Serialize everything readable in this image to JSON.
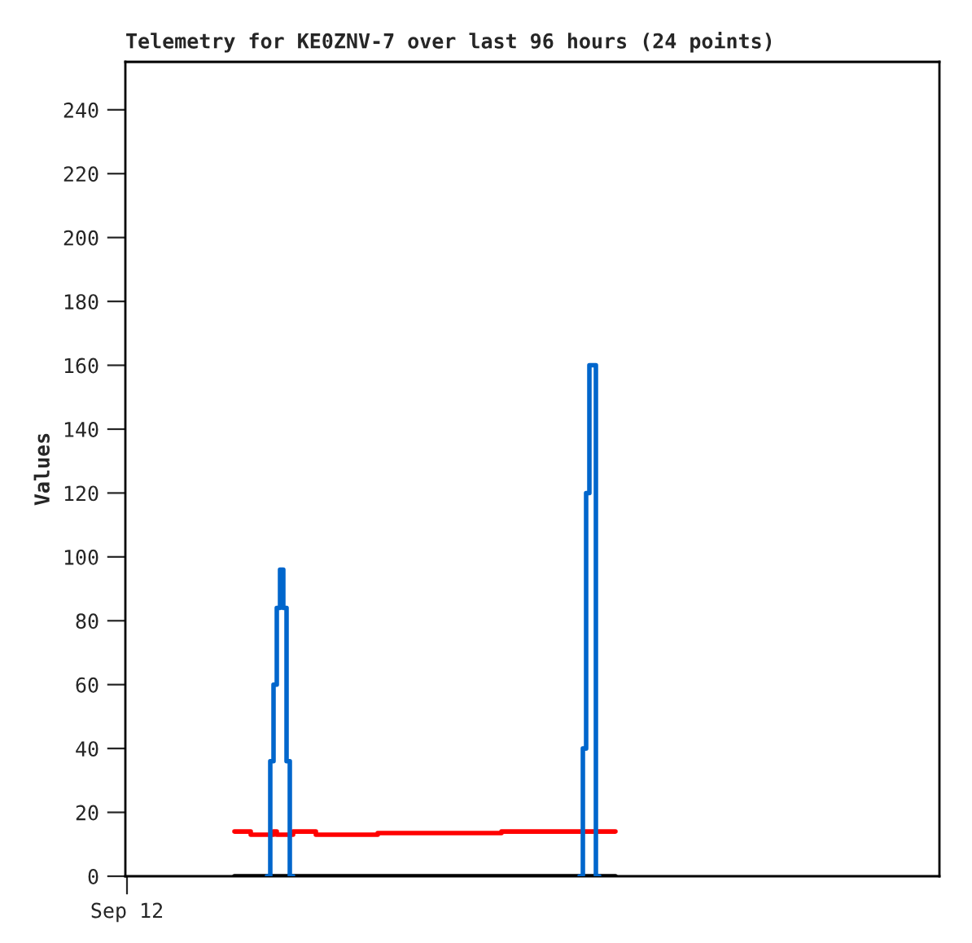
{
  "chart_data": {
    "type": "step",
    "title": "Telemetry for KE0ZNV-7 over last 96 hours (24 points)",
    "ylabel": "Values",
    "categories": [
      "Sep 12",
      null,
      null,
      null,
      null,
      null,
      null,
      null,
      null,
      null,
      null,
      null,
      null,
      null,
      null,
      null,
      null,
      null,
      null,
      null,
      null,
      null,
      null,
      null,
      null,
      null,
      null,
      null,
      null,
      null,
      null,
      null,
      null,
      null,
      null,
      null,
      null,
      null,
      null,
      null,
      null,
      null,
      null,
      null,
      null,
      null,
      null,
      null,
      null,
      null,
      null,
      null,
      null,
      null,
      null,
      null,
      null,
      null,
      null,
      null,
      null,
      null,
      null,
      null,
      null,
      null,
      null,
      null,
      null,
      null,
      null,
      null,
      null,
      null,
      null,
      null,
      null,
      null,
      null,
      null,
      null,
      null,
      null,
      null,
      null,
      null,
      null,
      null,
      null,
      null,
      null,
      null,
      null,
      null,
      null,
      null,
      null,
      null,
      null,
      null,
      null,
      null,
      null,
      null,
      null,
      null,
      null,
      null,
      null,
      null,
      null,
      null,
      null,
      null,
      null,
      null,
      null,
      null,
      null,
      null,
      null,
      null,
      null,
      null,
      null,
      null,
      null,
      null,
      null,
      null,
      null,
      null,
      null,
      null,
      null,
      null,
      null,
      null,
      null,
      null,
      null,
      null,
      null,
      null,
      null,
      null,
      null,
      null,
      null,
      null,
      null,
      null,
      null,
      null,
      null,
      null,
      null,
      null,
      null,
      null,
      null,
      null,
      null,
      null,
      null,
      null,
      null,
      null,
      null,
      null,
      null,
      null,
      null,
      null,
      null,
      null,
      null,
      null,
      null,
      null,
      null,
      null,
      null,
      null,
      null,
      null,
      null,
      null,
      null,
      null,
      null,
      null,
      null,
      null,
      null,
      null,
      null,
      null,
      null,
      null,
      null,
      null,
      null,
      null,
      null,
      null,
      null,
      null,
      null,
      null,
      null,
      null,
      null,
      null,
      null,
      null,
      null,
      null,
      null,
      null,
      null,
      null,
      null,
      null,
      null,
      null,
      null,
      null,
      null,
      null,
      null,
      null,
      null,
      null,
      null,
      null,
      null,
      null,
      null,
      null,
      null,
      null,
      null,
      null,
      null,
      null,
      null,
      null,
      null,
      null
    ],
    "ylim": [
      0,
      255
    ],
    "yticks": [
      0,
      20,
      40,
      60,
      80,
      100,
      120,
      140,
      160,
      180,
      200,
      220,
      240
    ],
    "grid": false,
    "legend": false,
    "marker": "none",
    "line_style": "solid",
    "series": [
      {
        "color": "#0066cc",
        "values": [
          null,
          null,
          null,
          null,
          null,
          null,
          null,
          null,
          null,
          null,
          null,
          null,
          null,
          null,
          null,
          null,
          null,
          null,
          null,
          null,
          null,
          null,
          null,
          null,
          null,
          null,
          null,
          null,
          null,
          null,
          null,
          null,
          null,
          null,
          null,
          null,
          null,
          null,
          null,
          null,
          null,
          null,
          null,
          0,
          36,
          60,
          84,
          96,
          84,
          36,
          0,
          null,
          null,
          null,
          null,
          null,
          null,
          null,
          null,
          null,
          null,
          null,
          null,
          null,
          null,
          null,
          null,
          null,
          null,
          null,
          null,
          null,
          null,
          null,
          null,
          null,
          null,
          null,
          null,
          null,
          null,
          null,
          null,
          null,
          null,
          null,
          null,
          null,
          null,
          null,
          null,
          null,
          null,
          null,
          null,
          null,
          null,
          null,
          null,
          null,
          null,
          null,
          null,
          null,
          null,
          null,
          null,
          null,
          null,
          null,
          null,
          null,
          null,
          null,
          null,
          null,
          null,
          null,
          null,
          null,
          null,
          null,
          null,
          null,
          null,
          null,
          null,
          null,
          null,
          null,
          null,
          null,
          null,
          null,
          null,
          null,
          null,
          null,
          null,
          0,
          40,
          120,
          160,
          160,
          0,
          null,
          null,
          null,
          null,
          null,
          null,
          null,
          null,
          null,
          null,
          null,
          null,
          null,
          null,
          null,
          null,
          null,
          null,
          null,
          null,
          null,
          null,
          null,
          null,
          null,
          null,
          null,
          null,
          null,
          null,
          null,
          null,
          null,
          null,
          null,
          null,
          null,
          null,
          null,
          null,
          null,
          null,
          null,
          null,
          null,
          null,
          null,
          null,
          null,
          null,
          null,
          null,
          null,
          null,
          null,
          null,
          null,
          null,
          null,
          null,
          null,
          null,
          null,
          null,
          null,
          null,
          null,
          null,
          null,
          null,
          null,
          null,
          null,
          null,
          null,
          null,
          null,
          null,
          null,
          null,
          null,
          null,
          null,
          null,
          null,
          null,
          null,
          null,
          null,
          null,
          null,
          null,
          null,
          null,
          null,
          null,
          null,
          null,
          null,
          null,
          null,
          null,
          null,
          null,
          null
        ]
      },
      {
        "color": "#ff0000",
        "values": [
          null,
          null,
          null,
          null,
          null,
          null,
          null,
          null,
          null,
          null,
          null,
          null,
          null,
          null,
          null,
          null,
          null,
          null,
          null,
          null,
          null,
          null,
          null,
          null,
          null,
          null,
          null,
          null,
          null,
          null,
          null,
          null,
          null,
          14,
          14,
          14,
          14,
          14,
          13,
          13,
          13,
          13,
          13,
          13,
          13,
          14,
          13,
          13,
          13,
          13,
          13,
          14,
          14,
          14,
          14,
          14,
          14,
          14,
          13,
          13,
          13,
          13,
          13,
          13,
          13,
          13,
          13,
          13,
          13,
          13,
          13,
          13,
          13,
          13,
          13,
          13,
          13,
          13.5,
          13.5,
          13.5,
          13.5,
          13.5,
          13.5,
          13.5,
          13.5,
          13.5,
          13.5,
          13.5,
          13.5,
          13.5,
          13.5,
          13.5,
          13.5,
          13.5,
          13.5,
          13.5,
          13.5,
          13.5,
          13.5,
          13.5,
          13.5,
          13.5,
          13.5,
          13.5,
          13.5,
          13.5,
          13.5,
          13.5,
          13.5,
          13.5,
          13.5,
          13.5,
          13.5,
          13.5,
          13.5,
          14,
          14,
          14,
          14,
          14,
          14,
          14,
          14,
          14,
          14,
          14,
          14,
          14,
          14,
          14,
          14,
          14,
          14,
          14,
          14,
          14,
          14,
          14,
          14,
          14,
          14,
          14,
          14,
          14,
          14,
          14,
          14,
          14,
          14,
          14,
          null,
          null,
          null,
          null,
          null,
          null,
          null,
          null,
          null,
          null,
          null,
          null,
          null,
          null,
          null,
          null,
          null,
          null,
          null,
          null,
          null,
          null,
          null,
          null,
          null,
          null,
          null,
          null,
          null,
          null,
          null,
          null,
          null,
          null,
          null,
          null,
          null,
          null,
          null,
          null,
          null,
          null,
          null,
          null,
          null,
          null,
          null,
          null,
          null,
          null,
          null,
          null,
          null,
          null,
          null,
          null,
          null,
          null,
          null,
          null,
          null,
          null,
          null,
          null,
          null,
          null,
          null,
          null,
          null,
          null,
          null,
          null,
          null,
          null,
          null,
          null,
          null,
          null,
          null,
          null,
          null,
          null,
          null,
          null,
          null,
          null,
          null,
          null,
          null,
          null,
          null,
          null,
          null,
          null,
          null,
          null,
          null,
          null,
          null,
          null
        ]
      },
      {
        "color": "#000000",
        "values": [
          null,
          null,
          null,
          null,
          null,
          null,
          null,
          null,
          null,
          null,
          null,
          null,
          null,
          null,
          null,
          null,
          null,
          null,
          null,
          null,
          null,
          null,
          null,
          null,
          null,
          null,
          null,
          null,
          null,
          null,
          null,
          null,
          null,
          0,
          0,
          0,
          0,
          0,
          0,
          0,
          0,
          0,
          0,
          0,
          0,
          0,
          0,
          0,
          0,
          0,
          0,
          0,
          0,
          0,
          0,
          0,
          0,
          0,
          0,
          0,
          0,
          0,
          0,
          0,
          0,
          0,
          0,
          0,
          0,
          0,
          0,
          0,
          0,
          0,
          0,
          0,
          0,
          0,
          0,
          0,
          0,
          0,
          0,
          0,
          0,
          0,
          0,
          0,
          0,
          0,
          0,
          0,
          0,
          0,
          0,
          0,
          0,
          0,
          0,
          0,
          0,
          0,
          0,
          0,
          0,
          0,
          0,
          0,
          0,
          0,
          0,
          0,
          0,
          0,
          0,
          0,
          0,
          0,
          0,
          0,
          0,
          0,
          0,
          0,
          0,
          0,
          0,
          0,
          0,
          0,
          0,
          0,
          0,
          0,
          0,
          0,
          0,
          0,
          0,
          0,
          0,
          0,
          0,
          0,
          0,
          0,
          0,
          0,
          0,
          0,
          null,
          null,
          null,
          null,
          null,
          null,
          null,
          null,
          null,
          null,
          null,
          null,
          null,
          null,
          null,
          null,
          null,
          null,
          null,
          null,
          null,
          null,
          null,
          null,
          null,
          null,
          null,
          null,
          null,
          null,
          null,
          null,
          null,
          null,
          null,
          null,
          null,
          null,
          null,
          null,
          null,
          null,
          null,
          null,
          null,
          null,
          null,
          null,
          null,
          null,
          null,
          null,
          null,
          null,
          null,
          null,
          null,
          null,
          null,
          null,
          null,
          null,
          null,
          null,
          null,
          null,
          null,
          null,
          null,
          null,
          null,
          null,
          null,
          null,
          null,
          null,
          null,
          null,
          null,
          null,
          null,
          null,
          null,
          null,
          null,
          null,
          null,
          null,
          null,
          null,
          null,
          null,
          null,
          null,
          null,
          null,
          null,
          null,
          null,
          null
        ]
      }
    ]
  }
}
